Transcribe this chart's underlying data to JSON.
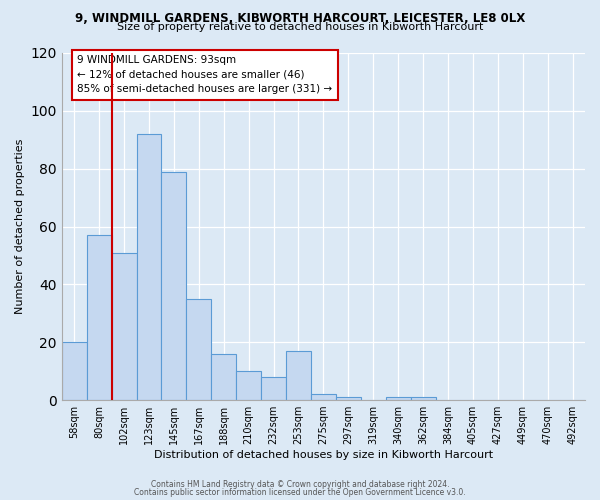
{
  "title": "9, WINDMILL GARDENS, KIBWORTH HARCOURT, LEICESTER, LE8 0LX",
  "subtitle": "Size of property relative to detached houses in Kibworth Harcourt",
  "xlabel": "Distribution of detached houses by size in Kibworth Harcourt",
  "ylabel": "Number of detached properties",
  "bin_labels": [
    "58sqm",
    "80sqm",
    "102sqm",
    "123sqm",
    "145sqm",
    "167sqm",
    "188sqm",
    "210sqm",
    "232sqm",
    "253sqm",
    "275sqm",
    "297sqm",
    "319sqm",
    "340sqm",
    "362sqm",
    "384sqm",
    "405sqm",
    "427sqm",
    "449sqm",
    "470sqm",
    "492sqm"
  ],
  "bar_values": [
    20,
    57,
    51,
    92,
    79,
    35,
    16,
    10,
    8,
    17,
    2,
    1,
    0,
    1,
    1,
    0,
    0,
    0,
    0,
    0,
    0
  ],
  "bar_color": "#c5d8f0",
  "bar_edge_color": "#5b9bd5",
  "vline_x": 1.5,
  "vline_color": "#cc0000",
  "ylim": [
    0,
    120
  ],
  "yticks": [
    0,
    20,
    40,
    60,
    80,
    100,
    120
  ],
  "annotation_title": "9 WINDMILL GARDENS: 93sqm",
  "annotation_line1": "← 12% of detached houses are smaller (46)",
  "annotation_line2": "85% of semi-detached houses are larger (331) →",
  "annotation_box_color": "#ffffff",
  "annotation_box_edge": "#cc0000",
  "footer1": "Contains HM Land Registry data © Crown copyright and database right 2024.",
  "footer2": "Contains public sector information licensed under the Open Government Licence v3.0.",
  "bg_color": "#dce9f5",
  "plot_bg_color": "#dce9f5"
}
